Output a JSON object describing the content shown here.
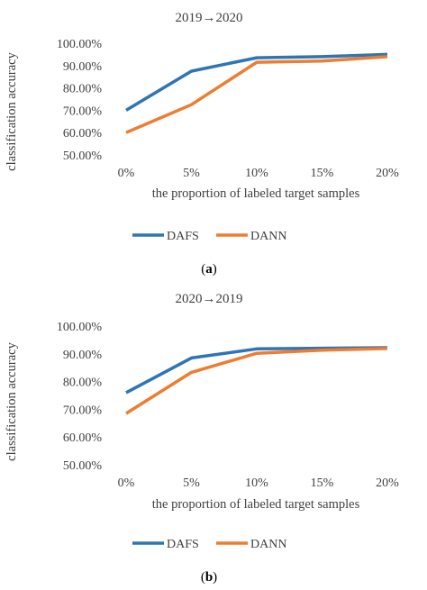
{
  "chart_data": [
    {
      "type": "line",
      "title": "2019→2020",
      "xlabel": "the proportion of labeled target samples",
      "ylabel": "classification accuracy",
      "categories": [
        "0%",
        "5%",
        "10%",
        "15%",
        "20%"
      ],
      "yticks": [
        "50.00%",
        "60.00%",
        "70.00%",
        "80.00%",
        "90.00%",
        "100.00%"
      ],
      "ylim": [
        50,
        100
      ],
      "series": [
        {
          "name": "DAFS",
          "color": "#2E75B6",
          "values": [
            70.0,
            87.5,
            93.5,
            94.0,
            95.0
          ]
        },
        {
          "name": "DANN",
          "color": "#ED7D31",
          "values": [
            60.0,
            72.5,
            91.5,
            92.0,
            94.0
          ]
        }
      ],
      "legend": "bottom",
      "grid": false,
      "caption_letter": "a"
    },
    {
      "type": "line",
      "title": "2020→2019",
      "xlabel": "the proportion of labeled target samples",
      "ylabel": "classification accuracy",
      "categories": [
        "0%",
        "5%",
        "10%",
        "15%",
        "20%"
      ],
      "yticks": [
        "50.00%",
        "60.00%",
        "70.00%",
        "80.00%",
        "90.00%",
        "100.00%"
      ],
      "ylim": [
        50,
        100
      ],
      "series": [
        {
          "name": "DAFS",
          "color": "#2E75B6",
          "values": [
            76.0,
            88.5,
            91.8,
            92.0,
            92.2
          ]
        },
        {
          "name": "DANN",
          "color": "#ED7D31",
          "values": [
            68.5,
            83.3,
            90.2,
            91.3,
            91.9
          ]
        }
      ],
      "legend": "bottom",
      "grid": false,
      "caption_letter": "b"
    }
  ]
}
